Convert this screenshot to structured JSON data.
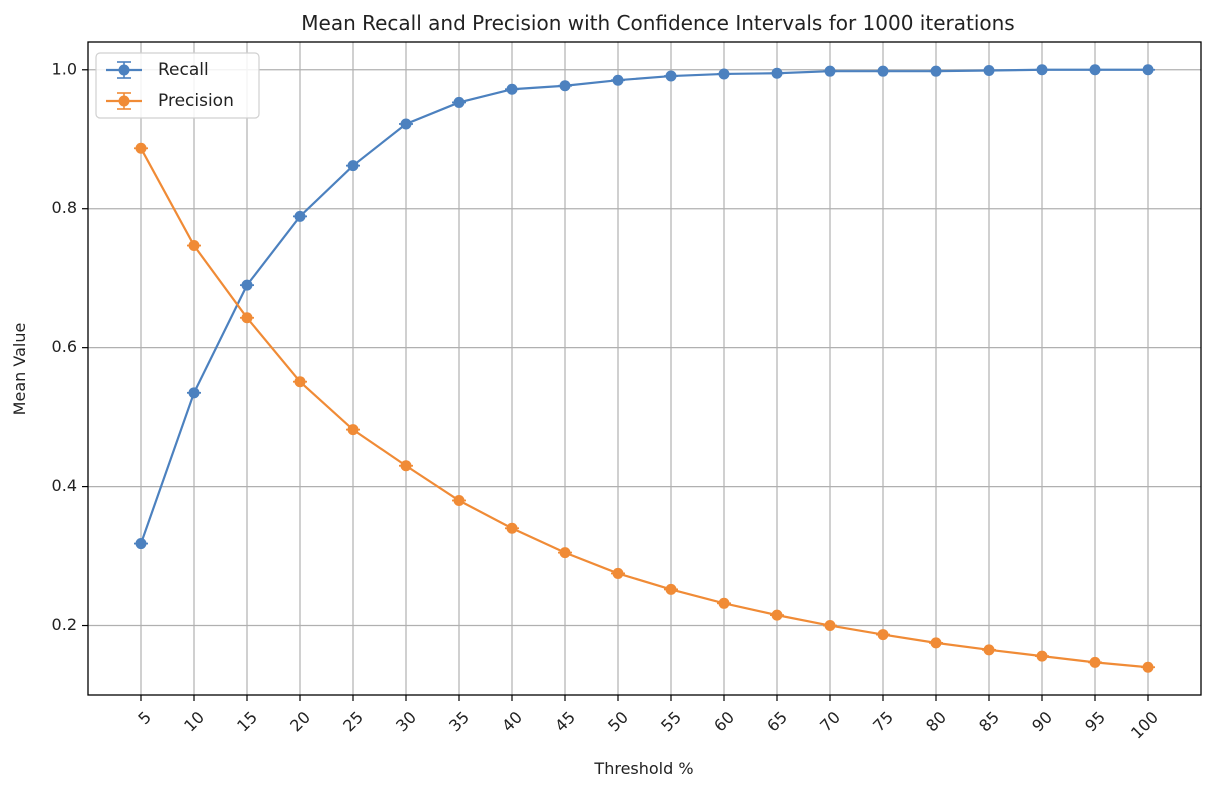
{
  "chart_data": {
    "type": "line",
    "title": "Mean Recall and Precision with Confidence Intervals for 1000 iterations",
    "xlabel": "Threshold %",
    "ylabel": "Mean Value",
    "x": [
      5,
      10,
      15,
      20,
      25,
      30,
      35,
      40,
      45,
      50,
      55,
      60,
      65,
      70,
      75,
      80,
      85,
      90,
      95,
      100
    ],
    "xticks": [
      "5",
      "10",
      "15",
      "20",
      "25",
      "30",
      "35",
      "40",
      "45",
      "50",
      "55",
      "60",
      "65",
      "70",
      "75",
      "80",
      "85",
      "90",
      "95",
      "100"
    ],
    "yticks": [
      0.2,
      0.4,
      0.6,
      0.8,
      1.0
    ],
    "ytick_labels": [
      "0.2",
      "0.4",
      "0.6",
      "0.8",
      "1.0"
    ],
    "ylim": [
      0.1,
      1.04
    ],
    "xlim": [
      0,
      105
    ],
    "grid": true,
    "legend_position": "top-left",
    "series": [
      {
        "name": "Recall",
        "color": "#4c81bf",
        "values": [
          0.318,
          0.535,
          0.69,
          0.789,
          0.862,
          0.922,
          0.953,
          0.972,
          0.977,
          0.985,
          0.991,
          0.994,
          0.995,
          0.998,
          0.998,
          0.998,
          0.999,
          1.0,
          1.0,
          1.0
        ]
      },
      {
        "name": "Precision",
        "color": "#f08b36",
        "values": [
          0.887,
          0.747,
          0.643,
          0.551,
          0.482,
          0.43,
          0.38,
          0.34,
          0.305,
          0.275,
          0.252,
          0.232,
          0.215,
          0.2,
          0.187,
          0.175,
          0.165,
          0.156,
          0.147,
          0.14
        ]
      }
    ]
  }
}
